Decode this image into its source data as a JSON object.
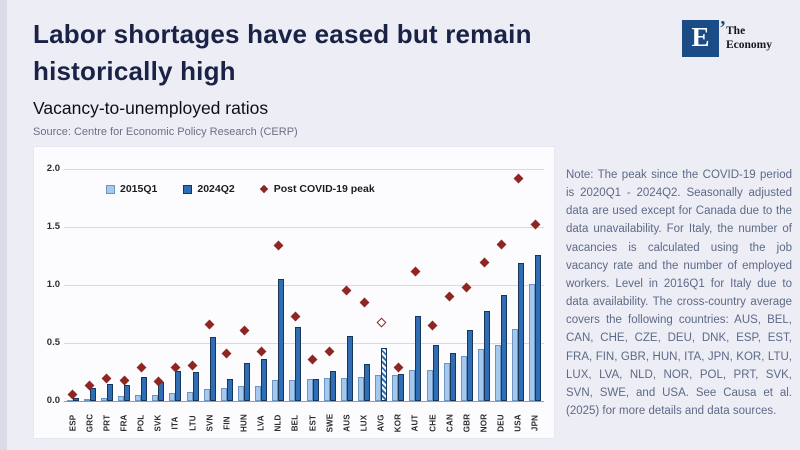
{
  "header": {
    "title_line1": "Labor shortages have eased but remain",
    "title_line2": "historically high",
    "subtitle": "Vacancy-to-unemployed ratios",
    "source": "Source: Centre for Economic Policy Research (CERP)"
  },
  "logo": {
    "mark": "E",
    "tick": "’",
    "name_line1": "The",
    "name_line2": "Economy"
  },
  "chart_data": {
    "type": "bar",
    "title": "Vacancy-to-unemployed ratios",
    "categories": [
      "ESP",
      "GRC",
      "PRT",
      "FRA",
      "POL",
      "SVK",
      "ITA",
      "LTU",
      "SVN",
      "FIN",
      "HUN",
      "LVA",
      "NLD",
      "BEL",
      "EST",
      "SWE",
      "AUS",
      "LUX",
      "AVG",
      "KOR",
      "AUT",
      "CHE",
      "CAN",
      "GBR",
      "NOR",
      "DEU",
      "USA",
      "JPN"
    ],
    "series": [
      {
        "name": "2015Q1",
        "type": "bar",
        "color": "#a6c8ec",
        "values": [
          0.01,
          0.02,
          0.03,
          0.04,
          0.05,
          0.05,
          0.07,
          0.08,
          0.1,
          0.11,
          0.13,
          0.13,
          0.18,
          0.18,
          0.19,
          0.2,
          0.2,
          0.21,
          0.22,
          0.22,
          0.27,
          0.27,
          0.33,
          0.39,
          0.45,
          0.48,
          0.62,
          1.01
        ]
      },
      {
        "name": "2024Q2",
        "type": "bar",
        "color": "#2f6eb5",
        "values": [
          0.03,
          0.11,
          0.15,
          0.14,
          0.21,
          0.16,
          0.26,
          0.25,
          0.55,
          0.19,
          0.33,
          0.36,
          1.05,
          0.64,
          0.19,
          0.26,
          0.56,
          0.32,
          0.46,
          0.23,
          0.73,
          0.48,
          0.41,
          0.61,
          0.78,
          0.91,
          1.19,
          1.26
        ]
      },
      {
        "name": "Post COVID-19 peak",
        "type": "scatter-diamond",
        "color": "#8e2622",
        "values": [
          0.06,
          0.13,
          0.19,
          0.18,
          0.29,
          0.17,
          0.29,
          0.31,
          0.66,
          0.41,
          0.61,
          0.43,
          1.34,
          0.73,
          0.36,
          0.43,
          0.95,
          0.85,
          0.68,
          0.29,
          1.12,
          0.65,
          0.9,
          0.98,
          1.19,
          1.35,
          1.92,
          1.52
        ]
      }
    ],
    "highlight": {
      "category": "AVG",
      "bar_style": "hatched",
      "marker_style": "open"
    },
    "ylim": [
      0,
      2.0
    ],
    "yticks": [
      0.0,
      0.5,
      1.0,
      1.5,
      2.0
    ],
    "grid": true,
    "legend_position": "top-left-inside"
  },
  "note": {
    "text": "Note: The peak since the COVID-19 period is 2020Q1 - 2024Q2. Seasonally adjusted data are used except for Canada due to the data unavailability. For Italy, the number of vacancies is calculated using the job vacancy rate and the number of employed workers. Level in 2016Q1 for Italy due to data availability. The cross-country average covers the following countries: AUS, BEL, CAN, CHE, CZE, DEU, DNK, ESP, EST, FRA, FIN, GBR, HUN, ITA, JPN, KOR, LTU, LUX, LVA, NLD, NOR, POL, PRT, SVK, SVN, SWE, and USA. See Causa et al. (2025) for more details and data sources."
  }
}
